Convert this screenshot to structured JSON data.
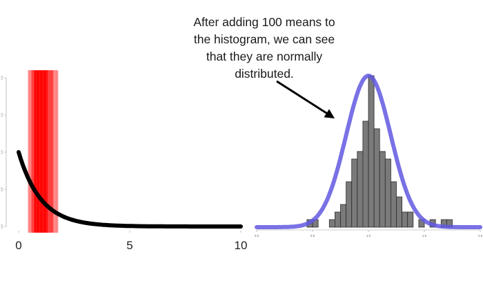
{
  "annotation": {
    "lines": [
      "After adding 100 means to",
      "the histogram, we can see",
      "that they are normally",
      "distributed."
    ]
  },
  "chart_data": [
    {
      "type": "line",
      "title": "",
      "xlabel": "",
      "ylabel": "",
      "xlim": [
        0,
        10
      ],
      "ylim": [
        0,
        2.0
      ],
      "x_ticks": [
        0,
        5,
        10
      ],
      "x_tick_labels": [
        "0",
        "5",
        "10"
      ],
      "y_ticks": [
        0,
        0.5,
        1.0,
        1.5,
        2.0
      ],
      "y_tick_labels": [
        "0.0",
        "0.5",
        "1.0",
        "1.5",
        "2.0"
      ],
      "series": [
        {
          "color": "#000000",
          "x": [
            0,
            0.25,
            0.5,
            0.75,
            1,
            1.5,
            2,
            2.5,
            3,
            4,
            5,
            6,
            7,
            8,
            9,
            10
          ],
          "y": [
            1.0,
            0.78,
            0.61,
            0.47,
            0.37,
            0.22,
            0.14,
            0.08,
            0.05,
            0.02,
            0.01,
            0.0,
            0.0,
            0.0,
            0.0,
            0.0
          ]
        }
      ],
      "shaded_band": {
        "x_range": [
          0.45,
          1.75
        ],
        "core_range": [
          0.7,
          1.3
        ],
        "color": "#ff0000"
      }
    },
    {
      "type": "bar",
      "title": "",
      "xlabel": "",
      "ylabel": "",
      "xlim": [
        0,
        2.0
      ],
      "ylim": [
        0,
        2.0
      ],
      "x_ticks": [
        0,
        0.5,
        1.0,
        1.5,
        2.0
      ],
      "x_tick_labels": [
        "0.0",
        "0.5",
        "1.0",
        "1.5",
        "2.0"
      ],
      "bin_width": 0.05,
      "bins": [
        {
          "x0": 0.45,
          "height": 0.1
        },
        {
          "x0": 0.5,
          "height": 0.1
        },
        {
          "x0": 0.65,
          "height": 0.1
        },
        {
          "x0": 0.7,
          "height": 0.2
        },
        {
          "x0": 0.75,
          "height": 0.3
        },
        {
          "x0": 0.8,
          "height": 0.6
        },
        {
          "x0": 0.85,
          "height": 0.9
        },
        {
          "x0": 0.9,
          "height": 1.0
        },
        {
          "x0": 0.95,
          "height": 1.4
        },
        {
          "x0": 1.0,
          "height": 2.0
        },
        {
          "x0": 1.05,
          "height": 1.3
        },
        {
          "x0": 1.1,
          "height": 1.0
        },
        {
          "x0": 1.15,
          "height": 0.9
        },
        {
          "x0": 1.2,
          "height": 0.6
        },
        {
          "x0": 1.25,
          "height": 0.4
        },
        {
          "x0": 1.3,
          "height": 0.2
        },
        {
          "x0": 1.35,
          "height": 0.2
        },
        {
          "x0": 1.45,
          "height": 0.1
        },
        {
          "x0": 1.55,
          "height": 0.1
        },
        {
          "x0": 1.65,
          "height": 0.1
        },
        {
          "x0": 1.7,
          "height": 0.1
        }
      ],
      "normal_curve": {
        "mean": 1.0,
        "sd": 0.2,
        "peak": 2.0,
        "color": "#6258e0"
      }
    }
  ],
  "arrow": {
    "color": "#000000"
  }
}
